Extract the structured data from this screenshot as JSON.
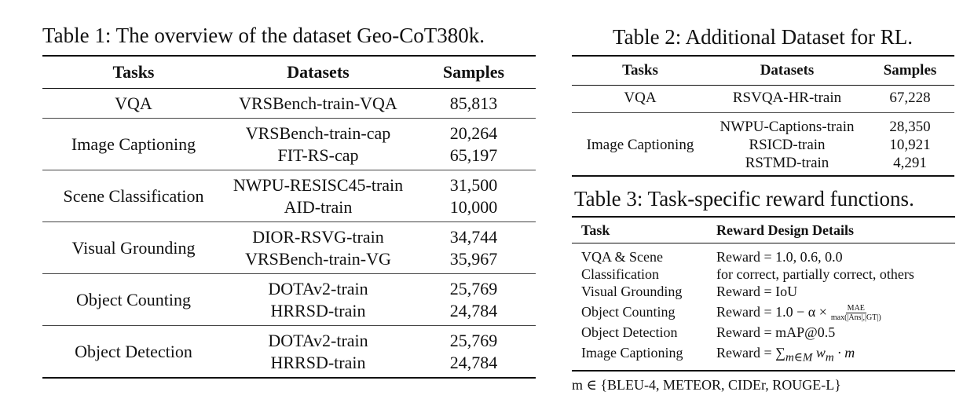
{
  "table1": {
    "caption": "Table 1: The overview of the dataset Geo-CoT380k.",
    "headers": [
      "Tasks",
      "Datasets",
      "Samples"
    ],
    "rows": [
      {
        "task": "VQA",
        "datasets": [
          "VRSBench-train-VQA"
        ],
        "samples": [
          "85,813"
        ]
      },
      {
        "task": "Image Captioning",
        "datasets": [
          "VRSBench-train-cap",
          "FIT-RS-cap"
        ],
        "samples": [
          "20,264",
          "65,197"
        ]
      },
      {
        "task": "Scene Classification",
        "datasets": [
          "NWPU-RESISC45-train",
          "AID-train"
        ],
        "samples": [
          "31,500",
          "10,000"
        ]
      },
      {
        "task": "Visual Grounding",
        "datasets": [
          "DIOR-RSVG-train",
          "VRSBench-train-VG"
        ],
        "samples": [
          "34,744",
          "35,967"
        ]
      },
      {
        "task": "Object Counting",
        "datasets": [
          "DOTAv2-train",
          "HRRSD-train"
        ],
        "samples": [
          "25,769",
          "24,784"
        ]
      },
      {
        "task": "Object Detection",
        "datasets": [
          "DOTAv2-train",
          "HRRSD-train"
        ],
        "samples": [
          "25,769",
          "24,784"
        ]
      }
    ]
  },
  "table2": {
    "caption": "Table 2: Additional Dataset for RL.",
    "headers": [
      "Tasks",
      "Datasets",
      "Samples"
    ],
    "rows": [
      {
        "task": "VQA",
        "datasets": [
          "RSVQA-HR-train"
        ],
        "samples": [
          "67,228"
        ]
      },
      {
        "task": "Image Captioning",
        "datasets": [
          "NWPU-Captions-train",
          "RSICD-train",
          "RSTMD-train"
        ],
        "samples": [
          "28,350",
          "10,921",
          "4,291"
        ]
      }
    ]
  },
  "table3": {
    "caption": "Table 3: Task-specific reward functions.",
    "headers": [
      "Task",
      "Reward Design Details"
    ],
    "rows": [
      {
        "task": [
          "VQA & Scene",
          "Classification"
        ],
        "details": [
          "Reward = 1.0, 0.6, 0.0",
          "for correct, partially correct, others"
        ]
      },
      {
        "task": [
          "Visual Grounding"
        ],
        "details": [
          "Reward = IoU"
        ]
      },
      {
        "task": [
          "Object Counting"
        ],
        "details": [
          "Reward = 1.0 − α ×"
        ],
        "fraction": {
          "num": "MAE",
          "den": "max(|Ans|,|GT|)"
        }
      },
      {
        "task": [
          "Object Detection"
        ],
        "details": [
          "Reward = mAP@0.5"
        ]
      },
      {
        "task": [
          "Image Captioning"
        ],
        "details": [
          "Reward = ∑",
          "m∈M",
          " w",
          "m",
          " · m"
        ]
      }
    ]
  },
  "footnote": "m ∈ {BLEU-4, METEOR, CIDEr, ROUGE-L}"
}
